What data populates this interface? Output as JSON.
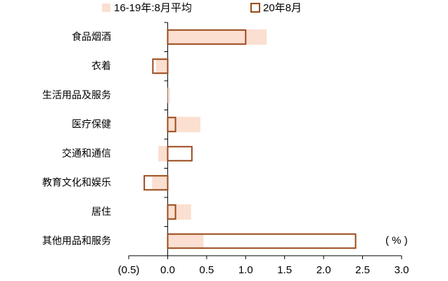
{
  "chart_data": {
    "type": "hbar",
    "categories": [
      "食品烟酒",
      "衣着",
      "生活用品及服务",
      "医疗保健",
      "交通和通信",
      "教育文化和娱乐",
      "居住",
      "其他用品和服务"
    ],
    "series": [
      {
        "name": "16-19年:8月平均",
        "color": "#fbdfd1",
        "values": [
          1.27,
          -0.15,
          0.03,
          0.42,
          -0.12,
          -0.2,
          0.3,
          0.46
        ]
      },
      {
        "name": "20年8月",
        "color": "#9a4a1c",
        "values": [
          1.0,
          -0.19,
          0.0,
          0.1,
          0.31,
          -0.3,
          0.1,
          2.41
        ]
      }
    ],
    "xlim": [
      -0.5,
      3.0
    ],
    "xticks": [
      {
        "value": -0.5,
        "label": "(0.5)"
      },
      {
        "value": 0,
        "label": "0.0"
      },
      0.5,
      {
        "value": 1,
        "label": "1.0"
      },
      1.5,
      {
        "value": 2,
        "label": "2.0"
      },
      2.5,
      {
        "value": 3,
        "label": "3.0"
      }
    ],
    "unit_label": "( % )",
    "grid": false
  }
}
